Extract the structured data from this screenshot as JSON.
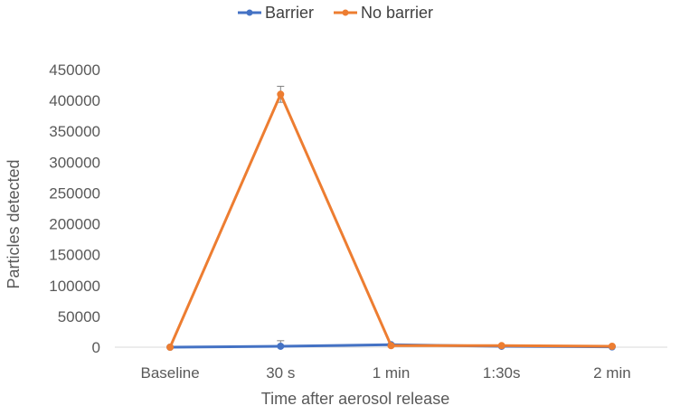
{
  "chart_data": {
    "type": "line",
    "categories": [
      "Baseline",
      "30 s",
      "1 min",
      "1:30s",
      "2 min"
    ],
    "series": [
      {
        "name": "Barrier",
        "color": "#4472c4",
        "values": [
          0,
          1500,
          4000,
          1500,
          500
        ],
        "error": [
          0,
          9000,
          1500,
          500,
          300
        ]
      },
      {
        "name": "No barrier",
        "color": "#ed7d31",
        "values": [
          0,
          410000,
          2500,
          2500,
          1500
        ],
        "error": [
          0,
          13000,
          1000,
          700,
          500
        ]
      }
    ],
    "xlabel": "Time after aerosol release",
    "ylabel": "Particles detected",
    "ylim": [
      0,
      450000
    ],
    "yticks": [
      0,
      50000,
      100000,
      150000,
      200000,
      250000,
      300000,
      350000,
      400000,
      450000
    ],
    "grid": false,
    "legend_position": "top"
  }
}
